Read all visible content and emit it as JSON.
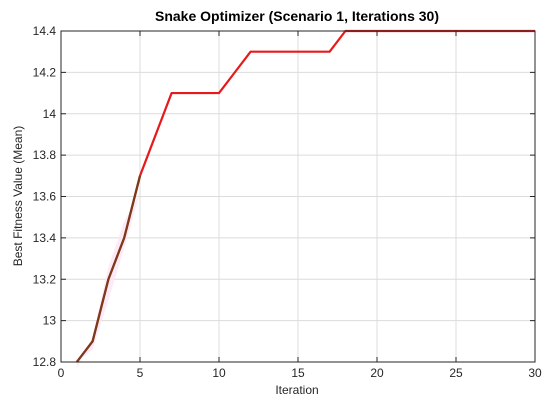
{
  "chart_data": {
    "type": "line",
    "title": "Snake Optimizer (Scenario 1, Iterations 30)",
    "xlabel": "Iteration",
    "ylabel": "Best Fitness Value (Mean)",
    "xlim": [
      0,
      30
    ],
    "ylim": [
      12.8,
      14.4
    ],
    "xticks": [
      0,
      5,
      10,
      15,
      20,
      25,
      30
    ],
    "xtick_labels": [
      "0",
      "5",
      "10",
      "15",
      "20",
      "25",
      "30"
    ],
    "yticks": [
      12.8,
      13.0,
      13.2,
      13.4,
      13.6,
      13.8,
      14.0,
      14.2,
      14.4
    ],
    "ytick_labels": [
      "12.8",
      "13",
      "13.2",
      "13.4",
      "13.6",
      "13.8",
      "14",
      "14.2",
      "14.4"
    ],
    "grid": true,
    "series": [
      {
        "color": "#e8191c",
        "x": [
          1,
          2,
          3,
          4,
          5,
          6,
          7,
          8,
          9,
          10,
          11,
          12,
          13,
          14,
          15,
          16,
          17,
          18,
          19,
          20,
          21,
          22,
          23,
          24,
          25,
          26,
          27,
          28,
          29,
          30
        ],
        "y": [
          12.8,
          12.9,
          13.2,
          13.4,
          13.7,
          13.9,
          14.1,
          14.1,
          14.1,
          14.1,
          14.2,
          14.3,
          14.3,
          14.3,
          14.3,
          14.3,
          14.3,
          14.4,
          14.4,
          14.4,
          14.4,
          14.4,
          14.4,
          14.4,
          14.4,
          14.4,
          14.4,
          14.4,
          14.4,
          14.4
        ]
      }
    ]
  }
}
